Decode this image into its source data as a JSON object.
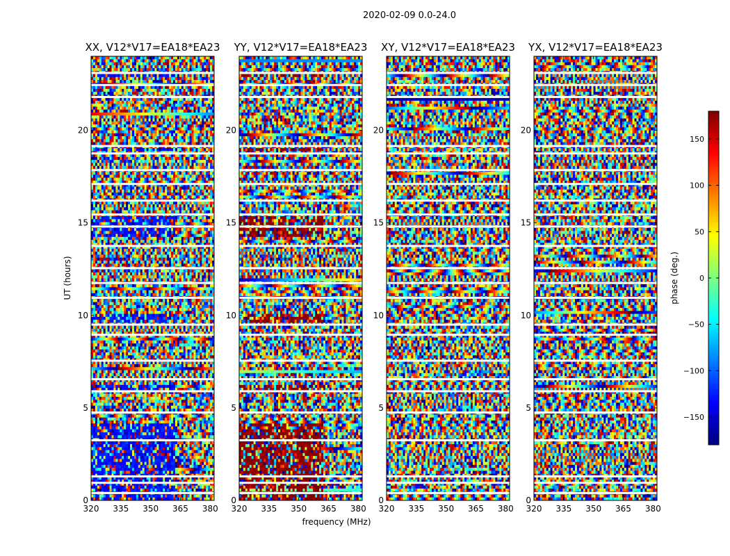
{
  "chart_data": {
    "type": "heatmap",
    "suptitle": "2020-02-09 0.0-24.0",
    "xlabel": "frequency (MHz)",
    "ylabel": "UT (hours)",
    "xlim": [
      320,
      382
    ],
    "ylim": [
      0,
      24
    ],
    "xticks": [
      320,
      335,
      350,
      365,
      380
    ],
    "yticks": [
      0,
      5,
      10,
      15,
      20
    ],
    "panels": [
      {
        "title": "XX, V12*V17=EA18*EA23",
        "bias": -130,
        "bias_strength": 0.55
      },
      {
        "title": "YY, V12*V17=EA18*EA23",
        "bias": 175,
        "bias_strength": 0.55
      },
      {
        "title": "XY, V12*V17=EA18*EA23",
        "bias": 0,
        "bias_strength": 0.0
      },
      {
        "title": "YX, V12*V17=EA18*EA23",
        "bias": 0,
        "bias_strength": 0.0
      }
    ],
    "blank_hours": [
      0.4,
      0.95,
      1.3,
      3.25,
      4.75,
      5.9,
      6.55,
      7.55,
      8.95,
      9.5,
      10.95,
      11.75,
      12.55,
      13.75,
      14.8,
      15.45,
      16.2,
      17.1,
      17.85,
      18.75,
      19.15,
      21.8,
      22.45,
      23.1
    ],
    "colorbar": {
      "label": "phase (deg.)",
      "range": [
        -180,
        180
      ],
      "ticks": [
        150,
        100,
        50,
        0,
        -50,
        -100,
        -150
      ],
      "tick_labels": [
        "150",
        "100",
        "50",
        "0",
        "−50",
        "−100",
        "−150"
      ],
      "colormap": [
        "#00007f",
        "#0000ff",
        "#007fff",
        "#00ffff",
        "#7fff7f",
        "#ffff00",
        "#ff7f00",
        "#ff0000",
        "#7f0000"
      ]
    }
  }
}
